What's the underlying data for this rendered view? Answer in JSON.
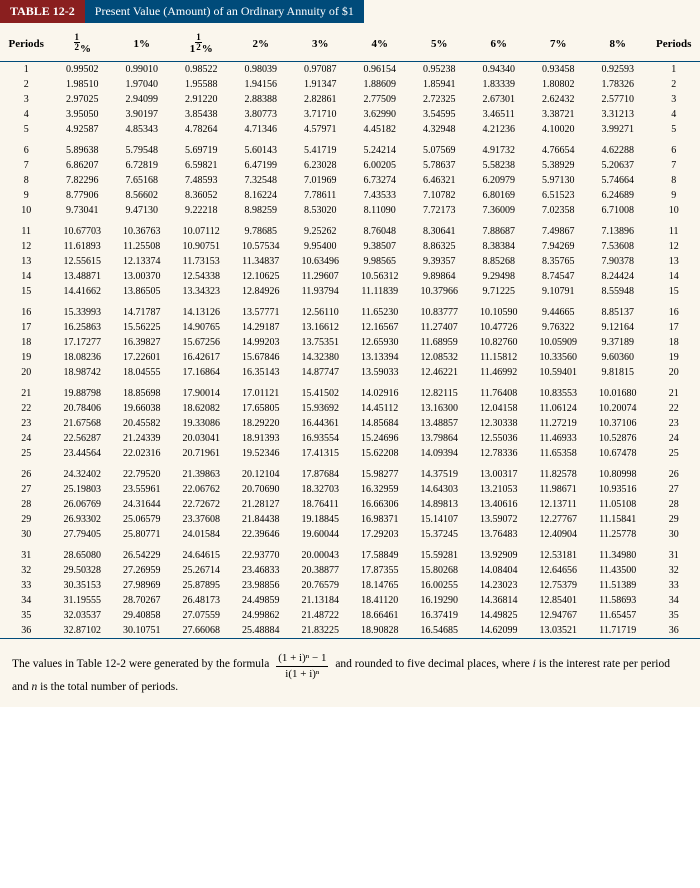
{
  "title": {
    "label": "TABLE 12-2",
    "text": "Present Value (Amount) of an Ordinary Annuity of $1"
  },
  "table": {
    "periods_label": "Periods",
    "rate_headers": [
      "½%",
      "1%",
      "1½%",
      "2%",
      "3%",
      "4%",
      "5%",
      "6%",
      "7%",
      "8%"
    ],
    "rows": [
      {
        "p": 1,
        "v": [
          "0.99502",
          "0.99010",
          "0.98522",
          "0.98039",
          "0.97087",
          "0.96154",
          "0.95238",
          "0.94340",
          "0.93458",
          "0.92593"
        ]
      },
      {
        "p": 2,
        "v": [
          "1.98510",
          "1.97040",
          "1.95588",
          "1.94156",
          "1.91347",
          "1.88609",
          "1.85941",
          "1.83339",
          "1.80802",
          "1.78326"
        ]
      },
      {
        "p": 3,
        "v": [
          "2.97025",
          "2.94099",
          "2.91220",
          "2.88388",
          "2.82861",
          "2.77509",
          "2.72325",
          "2.67301",
          "2.62432",
          "2.57710"
        ]
      },
      {
        "p": 4,
        "v": [
          "3.95050",
          "3.90197",
          "3.85438",
          "3.80773",
          "3.71710",
          "3.62990",
          "3.54595",
          "3.46511",
          "3.38721",
          "3.31213"
        ]
      },
      {
        "p": 5,
        "v": [
          "4.92587",
          "4.85343",
          "4.78264",
          "4.71346",
          "4.57971",
          "4.45182",
          "4.32948",
          "4.21236",
          "4.10020",
          "3.99271"
        ]
      },
      {
        "p": 6,
        "v": [
          "5.89638",
          "5.79548",
          "5.69719",
          "5.60143",
          "5.41719",
          "5.24214",
          "5.07569",
          "4.91732",
          "4.76654",
          "4.62288"
        ]
      },
      {
        "p": 7,
        "v": [
          "6.86207",
          "6.72819",
          "6.59821",
          "6.47199",
          "6.23028",
          "6.00205",
          "5.78637",
          "5.58238",
          "5.38929",
          "5.20637"
        ]
      },
      {
        "p": 8,
        "v": [
          "7.82296",
          "7.65168",
          "7.48593",
          "7.32548",
          "7.01969",
          "6.73274",
          "6.46321",
          "6.20979",
          "5.97130",
          "5.74664"
        ]
      },
      {
        "p": 9,
        "v": [
          "8.77906",
          "8.56602",
          "8.36052",
          "8.16224",
          "7.78611",
          "7.43533",
          "7.10782",
          "6.80169",
          "6.51523",
          "6.24689"
        ]
      },
      {
        "p": 10,
        "v": [
          "9.73041",
          "9.47130",
          "9.22218",
          "8.98259",
          "8.53020",
          "8.11090",
          "7.72173",
          "7.36009",
          "7.02358",
          "6.71008"
        ]
      },
      {
        "p": 11,
        "v": [
          "10.67703",
          "10.36763",
          "10.07112",
          "9.78685",
          "9.25262",
          "8.76048",
          "8.30641",
          "7.88687",
          "7.49867",
          "7.13896"
        ]
      },
      {
        "p": 12,
        "v": [
          "11.61893",
          "11.25508",
          "10.90751",
          "10.57534",
          "9.95400",
          "9.38507",
          "8.86325",
          "8.38384",
          "7.94269",
          "7.53608"
        ]
      },
      {
        "p": 13,
        "v": [
          "12.55615",
          "12.13374",
          "11.73153",
          "11.34837",
          "10.63496",
          "9.98565",
          "9.39357",
          "8.85268",
          "8.35765",
          "7.90378"
        ]
      },
      {
        "p": 14,
        "v": [
          "13.48871",
          "13.00370",
          "12.54338",
          "12.10625",
          "11.29607",
          "10.56312",
          "9.89864",
          "9.29498",
          "8.74547",
          "8.24424"
        ]
      },
      {
        "p": 15,
        "v": [
          "14.41662",
          "13.86505",
          "13.34323",
          "12.84926",
          "11.93794",
          "11.11839",
          "10.37966",
          "9.71225",
          "9.10791",
          "8.55948"
        ]
      },
      {
        "p": 16,
        "v": [
          "15.33993",
          "14.71787",
          "14.13126",
          "13.57771",
          "12.56110",
          "11.65230",
          "10.83777",
          "10.10590",
          "9.44665",
          "8.85137"
        ]
      },
      {
        "p": 17,
        "v": [
          "16.25863",
          "15.56225",
          "14.90765",
          "14.29187",
          "13.16612",
          "12.16567",
          "11.27407",
          "10.47726",
          "9.76322",
          "9.12164"
        ]
      },
      {
        "p": 18,
        "v": [
          "17.17277",
          "16.39827",
          "15.67256",
          "14.99203",
          "13.75351",
          "12.65930",
          "11.68959",
          "10.82760",
          "10.05909",
          "9.37189"
        ]
      },
      {
        "p": 19,
        "v": [
          "18.08236",
          "17.22601",
          "16.42617",
          "15.67846",
          "14.32380",
          "13.13394",
          "12.08532",
          "11.15812",
          "10.33560",
          "9.60360"
        ]
      },
      {
        "p": 20,
        "v": [
          "18.98742",
          "18.04555",
          "17.16864",
          "16.35143",
          "14.87747",
          "13.59033",
          "12.46221",
          "11.46992",
          "10.59401",
          "9.81815"
        ]
      },
      {
        "p": 21,
        "v": [
          "19.88798",
          "18.85698",
          "17.90014",
          "17.01121",
          "15.41502",
          "14.02916",
          "12.82115",
          "11.76408",
          "10.83553",
          "10.01680"
        ]
      },
      {
        "p": 22,
        "v": [
          "20.78406",
          "19.66038",
          "18.62082",
          "17.65805",
          "15.93692",
          "14.45112",
          "13.16300",
          "12.04158",
          "11.06124",
          "10.20074"
        ]
      },
      {
        "p": 23,
        "v": [
          "21.67568",
          "20.45582",
          "19.33086",
          "18.29220",
          "16.44361",
          "14.85684",
          "13.48857",
          "12.30338",
          "11.27219",
          "10.37106"
        ]
      },
      {
        "p": 24,
        "v": [
          "22.56287",
          "21.24339",
          "20.03041",
          "18.91393",
          "16.93554",
          "15.24696",
          "13.79864",
          "12.55036",
          "11.46933",
          "10.52876"
        ]
      },
      {
        "p": 25,
        "v": [
          "23.44564",
          "22.02316",
          "20.71961",
          "19.52346",
          "17.41315",
          "15.62208",
          "14.09394",
          "12.78336",
          "11.65358",
          "10.67478"
        ]
      },
      {
        "p": 26,
        "v": [
          "24.32402",
          "22.79520",
          "21.39863",
          "20.12104",
          "17.87684",
          "15.98277",
          "14.37519",
          "13.00317",
          "11.82578",
          "10.80998"
        ]
      },
      {
        "p": 27,
        "v": [
          "25.19803",
          "23.55961",
          "22.06762",
          "20.70690",
          "18.32703",
          "16.32959",
          "14.64303",
          "13.21053",
          "11.98671",
          "10.93516"
        ]
      },
      {
        "p": 28,
        "v": [
          "26.06769",
          "24.31644",
          "22.72672",
          "21.28127",
          "18.76411",
          "16.66306",
          "14.89813",
          "13.40616",
          "12.13711",
          "11.05108"
        ]
      },
      {
        "p": 29,
        "v": [
          "26.93302",
          "25.06579",
          "23.37608",
          "21.84438",
          "19.18845",
          "16.98371",
          "15.14107",
          "13.59072",
          "12.27767",
          "11.15841"
        ]
      },
      {
        "p": 30,
        "v": [
          "27.79405",
          "25.80771",
          "24.01584",
          "22.39646",
          "19.60044",
          "17.29203",
          "15.37245",
          "13.76483",
          "12.40904",
          "11.25778"
        ]
      },
      {
        "p": 31,
        "v": [
          "28.65080",
          "26.54229",
          "24.64615",
          "22.93770",
          "20.00043",
          "17.58849",
          "15.59281",
          "13.92909",
          "12.53181",
          "11.34980"
        ]
      },
      {
        "p": 32,
        "v": [
          "29.50328",
          "27.26959",
          "25.26714",
          "23.46833",
          "20.38877",
          "17.87355",
          "15.80268",
          "14.08404",
          "12.64656",
          "11.43500"
        ]
      },
      {
        "p": 33,
        "v": [
          "30.35153",
          "27.98969",
          "25.87895",
          "23.98856",
          "20.76579",
          "18.14765",
          "16.00255",
          "14.23023",
          "12.75379",
          "11.51389"
        ]
      },
      {
        "p": 34,
        "v": [
          "31.19555",
          "28.70267",
          "26.48173",
          "24.49859",
          "21.13184",
          "18.41120",
          "16.19290",
          "14.36814",
          "12.85401",
          "11.58693"
        ]
      },
      {
        "p": 35,
        "v": [
          "32.03537",
          "29.40858",
          "27.07559",
          "24.99862",
          "21.48722",
          "18.66461",
          "16.37419",
          "14.49825",
          "12.94767",
          "11.65457"
        ]
      },
      {
        "p": 36,
        "v": [
          "32.87102",
          "30.10751",
          "27.66068",
          "25.48884",
          "21.83225",
          "18.90828",
          "16.54685",
          "14.62099",
          "13.03521",
          "11.71719"
        ]
      }
    ],
    "group_starts": [
      6,
      11,
      16,
      21,
      26,
      31
    ],
    "colors": {
      "rule": "#004b7a",
      "background": "#faf6ed",
      "label_bg": "#8a1f1f",
      "title_bg": "#004b7a"
    }
  },
  "footer": {
    "prefix": "The values in Table 12-2 were generated by the formula ",
    "formula_num": "(1 + i)ⁿ − 1",
    "formula_den": "i(1 + i)ⁿ",
    "suffix": " and rounded to five decimal places, where ",
    "i_text": "i",
    "mid": " is the interest rate per period and ",
    "n_text": "n",
    "end": " is the total number of periods."
  }
}
